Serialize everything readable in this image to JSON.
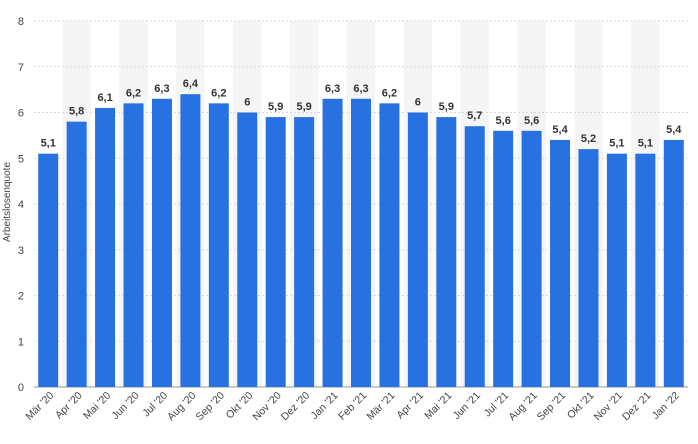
{
  "chart_data": {
    "type": "bar",
    "categories": [
      "Mär '20",
      "Apr '20",
      "Mai '20",
      "Jun '20",
      "Jul '20",
      "Aug '20",
      "Sep '20",
      "Okt '20",
      "Nov '20",
      "Dez '20",
      "Jan '21",
      "Feb '21",
      "Mär '21",
      "Apr '21",
      "Mai '21",
      "Jun '21",
      "Jul '21",
      "Aug '21",
      "Sep '21",
      "Okt '21",
      "Nov '21",
      "Dez '21",
      "Jan '22"
    ],
    "values": [
      5.1,
      5.8,
      6.1,
      6.2,
      6.3,
      6.4,
      6.2,
      6.0,
      5.9,
      5.9,
      6.3,
      6.3,
      6.2,
      6.0,
      5.9,
      5.7,
      5.6,
      5.6,
      5.4,
      5.2,
      5.1,
      5.1,
      5.4
    ],
    "data_labels": [
      "5,1",
      "5,8",
      "6,1",
      "6,2",
      "6,3",
      "6,4",
      "6,2",
      "6",
      "5,9",
      "5,9",
      "6,3",
      "6,3",
      "6,2",
      "6",
      "5,9",
      "5,7",
      "5,6",
      "5,6",
      "5,4",
      "5,2",
      "5,1",
      "5,1",
      "5,4"
    ],
    "title": "",
    "xlabel": "",
    "ylabel": "Arbeitslosenquote",
    "ylim": [
      0,
      8
    ],
    "yticks": [
      0,
      1,
      2,
      3,
      4,
      5,
      6,
      7,
      8
    ],
    "grid": true,
    "bar_color": "#2871e0",
    "stripe_color": "#f5f5f5",
    "grid_color": "#d9d9d9"
  }
}
